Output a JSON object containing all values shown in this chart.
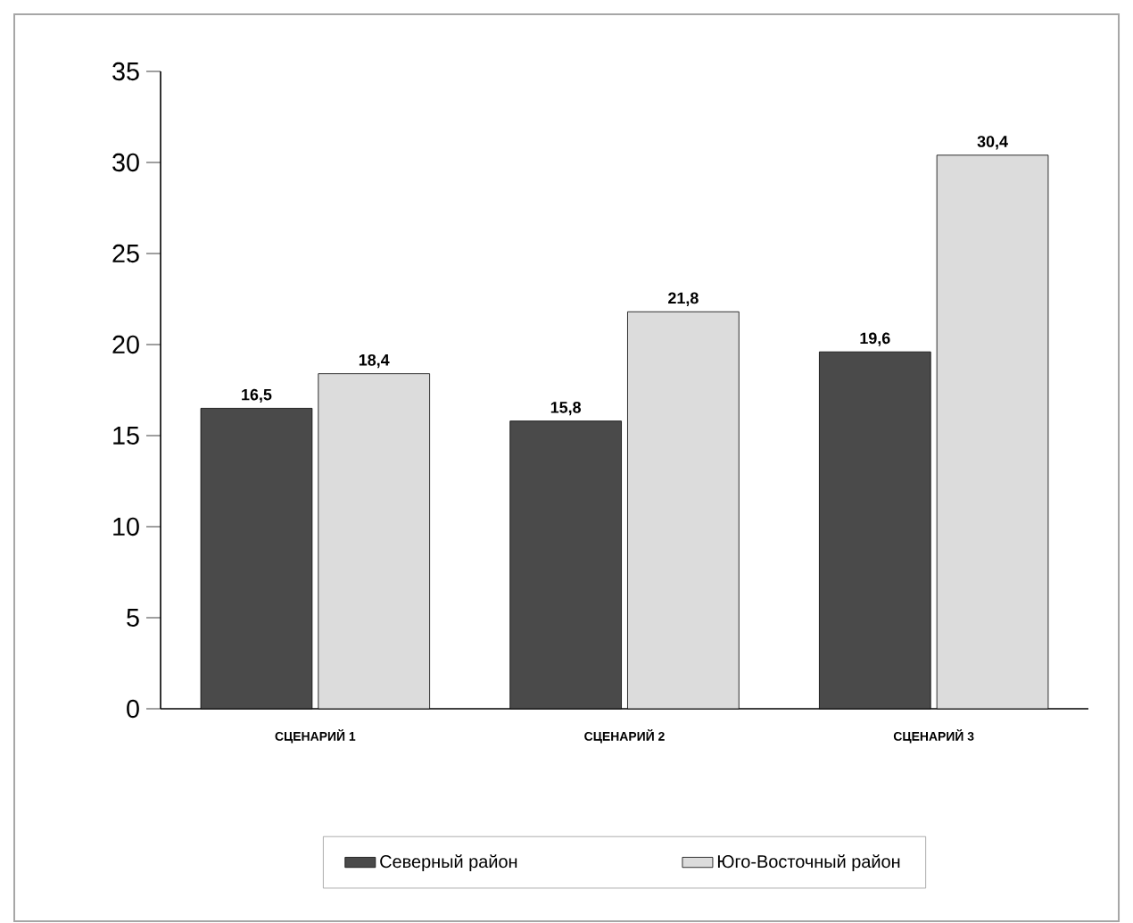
{
  "chart_data": {
    "type": "bar",
    "categories": [
      "СЦЕНАРИЙ 1",
      "СЦЕНАРИЙ 2",
      "СЦЕНАРИЙ 3"
    ],
    "series": [
      {
        "name": "Северный район",
        "color": "#4a4a4a",
        "values": [
          16.5,
          15.8,
          19.6
        ],
        "value_labels": [
          "16,5",
          "15,8",
          "19,6"
        ]
      },
      {
        "name": "Юго-Восточный район",
        "color": "#dcdcdc",
        "values": [
          18.4,
          21.8,
          30.4
        ],
        "value_labels": [
          "18,4",
          "21,8",
          "30,4"
        ]
      }
    ],
    "ylim": [
      0,
      35
    ],
    "yticks": [
      0,
      5,
      10,
      15,
      20,
      25,
      30,
      35
    ],
    "grid": false,
    "legend": "bottom"
  }
}
